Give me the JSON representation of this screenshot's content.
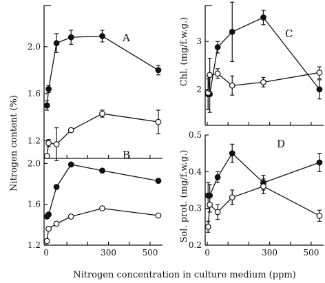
{
  "x_axis_title": "Nitrogen concentration in culture medium (ppm)",
  "left_axis_title": "Nitrogen content (%)",
  "chart_data": [
    {
      "panel": "A",
      "type": "line",
      "xlim": [
        -10,
        560
      ],
      "ylim": [
        1.05,
        2.35
      ],
      "yticks": [
        1.2,
        1.6,
        2.0
      ],
      "ytick_labels": [
        "1.2",
        "1.6",
        "2.0"
      ],
      "series": [
        {
          "marker": "filled",
          "x": [
            4,
            12,
            50,
            120,
            270,
            540
          ],
          "y": [
            1.5,
            1.64,
            2.03,
            2.08,
            2.09,
            1.8
          ],
          "err": [
            0.04,
            0.03,
            0.08,
            0.06,
            0.05,
            0.04
          ]
        },
        {
          "marker": "open",
          "x": [
            4,
            12,
            50,
            120,
            270,
            540
          ],
          "y": [
            1.07,
            1.18,
            1.17,
            1.29,
            1.43,
            1.36
          ],
          "err": [
            0.0,
            0.03,
            0.14,
            0.0,
            0.03,
            0.1
          ]
        }
      ]
    },
    {
      "panel": "B",
      "type": "line",
      "xlim": [
        -10,
        560
      ],
      "ylim": [
        1.2,
        2.05
      ],
      "yticks": [
        1.2,
        1.6,
        2.0
      ],
      "ytick_labels": [
        "1.2",
        "1.6",
        "2.0"
      ],
      "xticks": [
        0,
        300,
        500
      ],
      "xtick_labels": [
        "0",
        "300",
        "500"
      ],
      "series": [
        {
          "marker": "filled",
          "x": [
            4,
            12,
            50,
            120,
            270,
            540
          ],
          "y": [
            1.48,
            1.5,
            1.77,
            1.99,
            1.93,
            1.83
          ],
          "err": [
            0,
            0,
            0,
            0,
            0,
            0
          ]
        },
        {
          "marker": "open",
          "x": [
            4,
            12,
            50,
            120,
            270,
            540
          ],
          "y": [
            1.24,
            1.36,
            1.41,
            1.48,
            1.56,
            1.49
          ],
          "err": [
            0,
            0,
            0,
            0,
            0,
            0
          ]
        }
      ]
    },
    {
      "panel": "C",
      "type": "line",
      "ylabel": "Chl. (mg/f.w.g.)",
      "xlim": [
        -10,
        560
      ],
      "ylim": [
        1.25,
        3.75
      ],
      "yticks": [
        2,
        3
      ],
      "ytick_labels": [
        "2",
        "3"
      ],
      "series": [
        {
          "marker": "filled",
          "x": [
            4,
            12,
            50,
            120,
            270,
            540
          ],
          "y": [
            1.9,
            1.9,
            2.88,
            3.2,
            3.5,
            2.0
          ],
          "err": [
            0.32,
            0.38,
            0.12,
            0.62,
            0.15,
            0.2
          ]
        },
        {
          "marker": "open",
          "x": [
            4,
            12,
            50,
            120,
            270,
            540
          ],
          "y": [
            1.93,
            2.3,
            2.33,
            2.08,
            2.15,
            2.35
          ],
          "err": [
            0.35,
            0.35,
            0.1,
            0.2,
            0.1,
            0.12
          ]
        }
      ]
    },
    {
      "panel": "D",
      "type": "line",
      "ylabel": "Sol. prot. (mg/f.w.g.)",
      "xlim": [
        -10,
        560
      ],
      "ylim": [
        0.2,
        0.5
      ],
      "yticks": [
        0.2,
        0.3,
        0.4,
        0.5
      ],
      "ytick_labels": [
        "0.2",
        "0.3",
        "0.4",
        "0.5"
      ],
      "xticks": [
        0,
        300,
        500
      ],
      "xtick_labels": [
        "0",
        "300",
        "500"
      ],
      "series": [
        {
          "marker": "filled",
          "x": [
            4,
            12,
            50,
            120,
            270,
            540
          ],
          "y": [
            0.335,
            0.335,
            0.385,
            0.45,
            0.37,
            0.425
          ],
          "err": [
            0.035,
            0.03,
            0.015,
            0.025,
            0.02,
            0.025
          ]
        },
        {
          "marker": "open",
          "x": [
            4,
            12,
            50,
            120,
            270,
            540
          ],
          "y": [
            0.25,
            0.31,
            0.29,
            0.33,
            0.36,
            0.28
          ],
          "err": [
            0.015,
            0.02,
            0.02,
            0.02,
            0.02,
            0.015
          ]
        }
      ]
    }
  ]
}
